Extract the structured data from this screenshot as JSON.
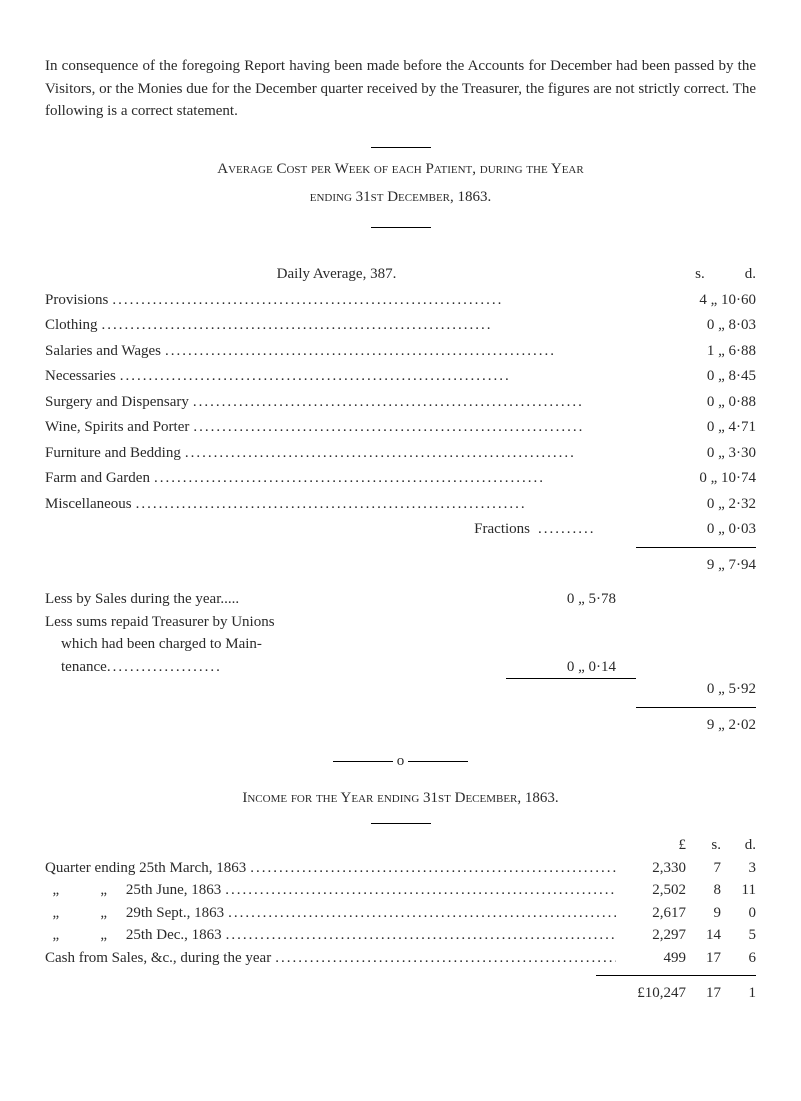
{
  "intro": "In consequence of the foregoing Report having been made before the Accounts for December had been passed by the Visitors, or the Monies due for the December quarter received by the Treasurer, the figures are not strictly correct. The following is a correct statement.",
  "avgHeading1": "Average Cost per Week of each Patient, during the Year",
  "avgHeading2": "ending 31st December, 1863.",
  "dailyAvgTitle": "Daily Average, 387.",
  "colS": "s.",
  "colD": "d.",
  "items": [
    {
      "label": "Provisions",
      "val": "4  „ 10·60"
    },
    {
      "label": "Clothing",
      "val": "0  „  8·03"
    },
    {
      "label": "Salaries and Wages",
      "val": "1  „  6·88"
    },
    {
      "label": "Necessaries",
      "val": "0  „  8·45"
    },
    {
      "label": "Surgery and Dispensary",
      "val": "0  „  0·88"
    },
    {
      "label": "Wine, Spirits and Porter",
      "val": "0  „  4·71"
    },
    {
      "label": "Furniture and Bedding",
      "val": "0  „  3·30"
    },
    {
      "label": "Farm and Garden",
      "val": "0  „ 10·74"
    },
    {
      "label": "Miscellaneous",
      "val": "0  „  2·32"
    }
  ],
  "fractionsLabel": "Fractions",
  "fractionsVal": "0  „  0·03",
  "subtotal1": "9  „  7·94",
  "lessLine1": "Less by Sales during the year",
  "lessVal1": "0  „  5·78",
  "lessLine2a": "Less sums repaid Treasurer by Unions",
  "lessLine2b": "which had been charged to Main-",
  "lessLine2c": "tenance",
  "lessVal2": "0  „  0·14",
  "lessTotal": "0  „  5·92",
  "grandTotal": "9  „  2·02",
  "incomeHeading": "Income for the Year ending 31st December, 1863.",
  "moneyHeader": {
    "l": "£",
    "s": "s.",
    "d": "d."
  },
  "quarters": [
    {
      "label": "Quarter ending 25th March, 1863",
      "l": "2,330",
      "s": "7",
      "d": "3"
    },
    {
      "label": "  „           „     25th June, 1863",
      "l": "2,502",
      "s": "8",
      "d": "11"
    },
    {
      "label": "  „           „     29th Sept., 1863",
      "l": "2,617",
      "s": "9",
      "d": "0"
    },
    {
      "label": "  „           „     25th Dec., 1863",
      "l": "2,297",
      "s": "14",
      "d": "5"
    },
    {
      "label": "Cash from Sales, &c., during the year",
      "l": "499",
      "s": "17",
      "d": "6"
    }
  ],
  "incomeTotal": {
    "l": "£10,247",
    "s": "17",
    "d": "1"
  },
  "dots": "...................................................................."
}
